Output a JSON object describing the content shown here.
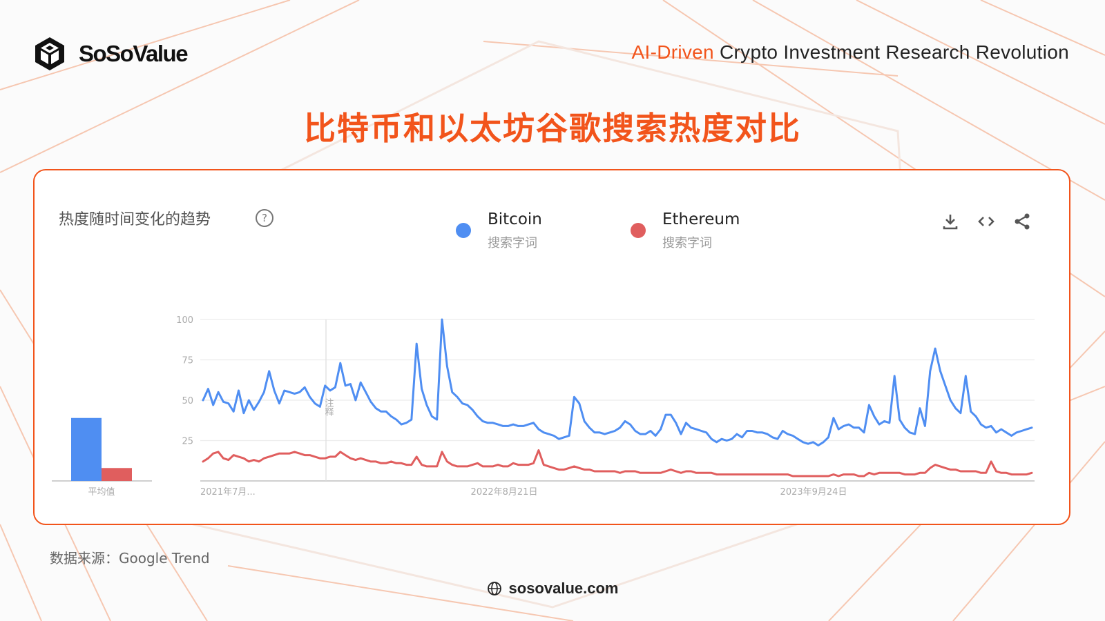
{
  "header": {
    "brand": "SoSoValue",
    "tagline_accent": "AI-Driven",
    "tagline_rest": " Crypto Investment Research Revolution"
  },
  "title": "比特币和以太坊谷歌搜索热度对比",
  "card": {
    "heading": "热度随时间变化的趋势",
    "help_icon": "?",
    "legend": [
      {
        "name": "Bitcoin",
        "sub": "搜索字词",
        "color": "#4f8ef2"
      },
      {
        "name": "Ethereum",
        "sub": "搜索字词",
        "color": "#e05e5e"
      }
    ],
    "tools": [
      "download-icon",
      "embed-icon",
      "share-icon"
    ]
  },
  "chart_data": [
    {
      "type": "bar",
      "categories": [
        "平均值"
      ],
      "series": [
        {
          "name": "Bitcoin",
          "values": [
            39
          ],
          "color": "#4f8ef2"
        },
        {
          "name": "Ethereum",
          "values": [
            8
          ],
          "color": "#e05e5e"
        }
      ],
      "ylim": [
        0,
        100
      ]
    },
    {
      "type": "line",
      "ylim": [
        0,
        100
      ],
      "yticks": [
        25,
        50,
        75,
        100
      ],
      "xtick_labels": [
        "2021年7月...",
        "2022年8月21日",
        "2023年9月24日"
      ],
      "annotation": "注释",
      "series": [
        {
          "name": "Bitcoin",
          "color": "#4f8ef2",
          "values": [
            50,
            57,
            47,
            55,
            49,
            48,
            43,
            56,
            42,
            50,
            44,
            49,
            55,
            68,
            56,
            48,
            56,
            55,
            54,
            55,
            58,
            52,
            48,
            46,
            59,
            56,
            58,
            73,
            59,
            60,
            50,
            61,
            55,
            49,
            45,
            43,
            43,
            40,
            38,
            35,
            36,
            38,
            85,
            57,
            47,
            40,
            38,
            100,
            71,
            55,
            52,
            48,
            47,
            44,
            40,
            37,
            36,
            36,
            35,
            34,
            34,
            35,
            34,
            34,
            35,
            36,
            32,
            30,
            29,
            28,
            26,
            27,
            28,
            52,
            48,
            37,
            33,
            30,
            30,
            29,
            30,
            31,
            33,
            37,
            35,
            31,
            29,
            29,
            31,
            28,
            32,
            41,
            41,
            36,
            29,
            36,
            33,
            32,
            31,
            30,
            26,
            24,
            26,
            25,
            26,
            29,
            27,
            31,
            31,
            30,
            30,
            29,
            27,
            26,
            31,
            29,
            28,
            26,
            24,
            23,
            24,
            22,
            24,
            27,
            39,
            32,
            34,
            35,
            33,
            33,
            30,
            47,
            40,
            35,
            37,
            36,
            65,
            38,
            33,
            30,
            29,
            45,
            34,
            68,
            82,
            68,
            59,
            50,
            45,
            42,
            65,
            43,
            40,
            35,
            33,
            34,
            30,
            32,
            30,
            28,
            30,
            31,
            32,
            33
          ]
        },
        {
          "name": "Ethereum",
          "color": "#e05e5e",
          "values": [
            12,
            14,
            17,
            18,
            14,
            13,
            16,
            15,
            14,
            12,
            13,
            12,
            14,
            15,
            16,
            17,
            17,
            17,
            18,
            17,
            16,
            16,
            15,
            14,
            14,
            15,
            15,
            18,
            16,
            14,
            13,
            14,
            13,
            12,
            12,
            11,
            11,
            12,
            11,
            11,
            10,
            10,
            15,
            10,
            9,
            9,
            9,
            18,
            12,
            10,
            9,
            9,
            9,
            10,
            11,
            9,
            9,
            9,
            10,
            9,
            9,
            11,
            10,
            10,
            10,
            11,
            19,
            10,
            9,
            8,
            7,
            7,
            8,
            9,
            8,
            7,
            7,
            6,
            6,
            6,
            6,
            6,
            5,
            6,
            6,
            6,
            5,
            5,
            5,
            5,
            5,
            6,
            7,
            6,
            5,
            6,
            6,
            5,
            5,
            5,
            5,
            4,
            4,
            4,
            4,
            4,
            4,
            4,
            4,
            4,
            4,
            4,
            4,
            4,
            4,
            4,
            3,
            3,
            3,
            3,
            3,
            3,
            3,
            3,
            4,
            3,
            4,
            4,
            4,
            3,
            3,
            5,
            4,
            5,
            5,
            5,
            5,
            5,
            4,
            4,
            4,
            5,
            5,
            8,
            10,
            9,
            8,
            7,
            7,
            6,
            6,
            6,
            6,
            5,
            5,
            12,
            6,
            5,
            5,
            4,
            4,
            4,
            4,
            5
          ]
        }
      ]
    }
  ],
  "footer": {
    "source": "数据来源：Google Trend",
    "website": "sosovalue.com"
  }
}
